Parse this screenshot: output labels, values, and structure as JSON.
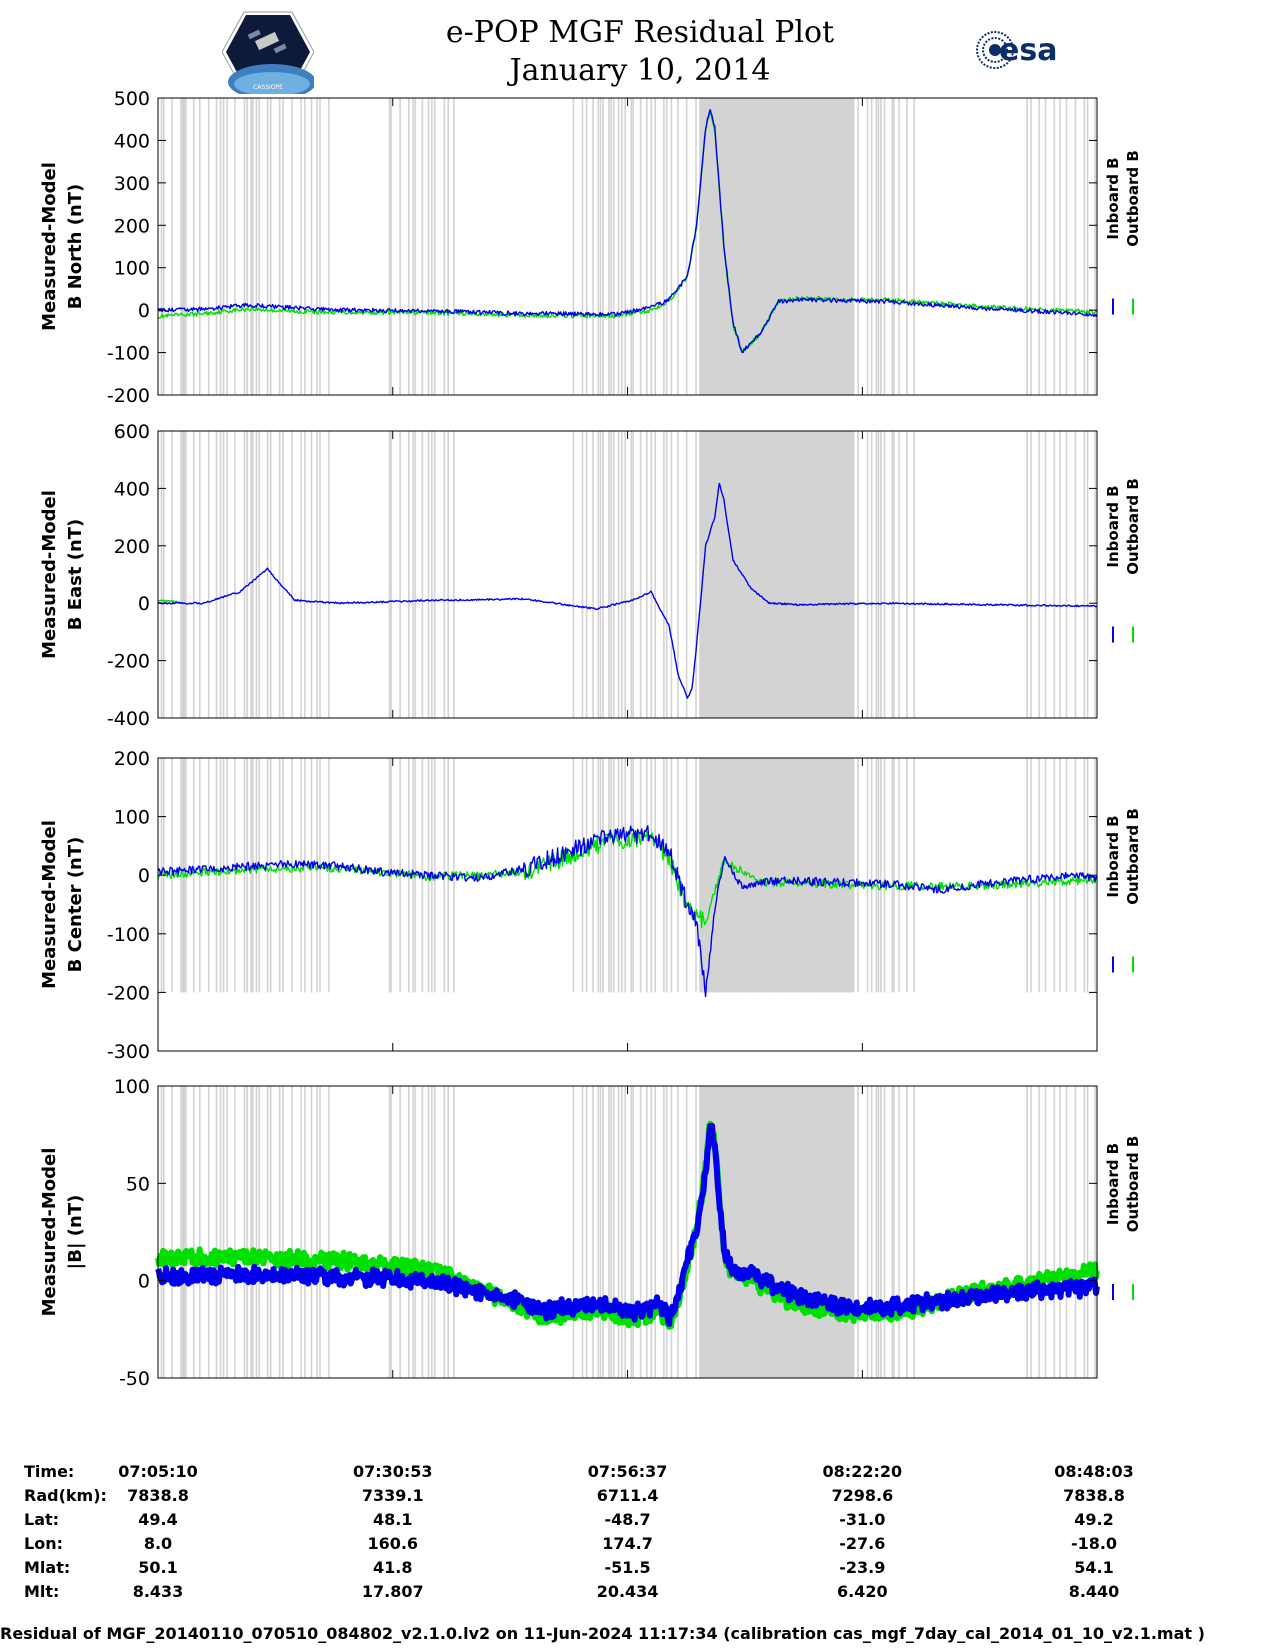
{
  "header": {
    "title_line1": "e-POP MGF Residual Plot",
    "title_line2": "January 10, 2014",
    "left_logo_text": "CASSIOPE",
    "right_logo_text": "esa"
  },
  "colors": {
    "inboard": "#0000ee",
    "outboard": "#00e000",
    "shading": "#d3d3d3"
  },
  "legend_labels": [
    "Inboard B",
    "Outboard B"
  ],
  "chart_data": [
    {
      "type": "line",
      "ylabel": [
        "Measured-Model",
        "B North (nT)"
      ],
      "ylim": [
        -200,
        500
      ],
      "yticks": [
        -200,
        -100,
        0,
        100,
        200,
        300,
        400,
        500
      ],
      "xticks_minutes": [
        0,
        25.72,
        51.45,
        77.17,
        102.88
      ],
      "series": [
        {
          "name": "Inboard B",
          "x": [
            0,
            5,
            10,
            15,
            20,
            30,
            40,
            50,
            54,
            56,
            58,
            59,
            60,
            60.5,
            61,
            62,
            63,
            64,
            66,
            68,
            70,
            80,
            90,
            102.88
          ],
          "y": [
            0,
            2,
            12,
            5,
            0,
            -2,
            -8,
            -10,
            5,
            25,
            80,
            200,
            430,
            475,
            430,
            150,
            -30,
            -100,
            -55,
            20,
            25,
            20,
            5,
            -10
          ]
        },
        {
          "name": "Outboard B",
          "x": [
            0,
            5,
            10,
            15,
            20,
            30,
            40,
            50,
            54,
            56,
            58,
            59,
            60,
            60.5,
            61,
            62,
            63,
            64,
            66,
            68,
            70,
            80,
            90,
            102.88
          ],
          "y": [
            -15,
            -8,
            3,
            -3,
            -5,
            -6,
            -12,
            -14,
            0,
            22,
            78,
            195,
            425,
            470,
            425,
            145,
            -35,
            -100,
            -55,
            20,
            28,
            24,
            9,
            -5
          ]
        }
      ]
    },
    {
      "type": "line",
      "ylabel": [
        "Measured-Model",
        "B East (nT)"
      ],
      "ylim": [
        -400,
        600
      ],
      "yticks": [
        -400,
        -200,
        0,
        200,
        400,
        600
      ],
      "xticks_minutes": [
        0,
        25.72,
        51.45,
        77.17,
        102.88
      ],
      "series": [
        {
          "name": "Inboard B",
          "x": [
            0,
            5,
            9,
            12,
            13,
            15,
            20,
            30,
            40,
            48,
            52,
            54,
            56,
            57,
            58,
            58.5,
            59,
            60,
            61,
            61.5,
            62,
            63,
            65,
            67,
            70,
            80,
            90,
            102.88
          ],
          "y": [
            0,
            0,
            40,
            120,
            80,
            10,
            0,
            10,
            15,
            -20,
            10,
            40,
            -80,
            -250,
            -330,
            -300,
            -150,
            200,
            300,
            420,
            360,
            150,
            50,
            0,
            -5,
            0,
            -5,
            -10
          ]
        },
        {
          "name": "Outboard B",
          "x": [
            0,
            2,
            2.5
          ],
          "y": [
            10,
            5,
            0
          ]
        }
      ]
    },
    {
      "type": "line",
      "ylabel": [
        "Measured-Model",
        "B Center (nT)"
      ],
      "ylim": [
        -300,
        200
      ],
      "yticks": [
        -300,
        -200,
        -100,
        0,
        100,
        200
      ],
      "xticks_minutes": [
        0,
        25.72,
        51.45,
        77.17,
        102.88
      ],
      "series": [
        {
          "name": "Inboard B",
          "x": [
            0,
            5,
            10,
            15,
            20,
            25,
            30,
            35,
            40,
            45,
            50,
            54,
            56,
            58,
            59,
            60,
            61,
            62,
            64,
            66,
            70,
            80,
            86,
            90,
            100,
            102.88
          ],
          "y": [
            5,
            10,
            15,
            20,
            15,
            5,
            0,
            -5,
            10,
            40,
            70,
            70,
            40,
            -50,
            -80,
            -200,
            -60,
            30,
            -20,
            -10,
            -10,
            -15,
            -25,
            -15,
            0,
            -5
          ]
        },
        {
          "name": "Outboard B",
          "x": [
            0,
            10,
            20,
            30,
            40,
            50,
            54,
            56,
            58,
            60,
            62,
            66,
            80,
            90,
            102.88
          ],
          "y": [
            0,
            10,
            12,
            -3,
            5,
            60,
            62,
            30,
            -55,
            -80,
            25,
            -12,
            -18,
            -18,
            -8
          ]
        }
      ]
    },
    {
      "type": "line",
      "ylabel": [
        "Measured-Model",
        "|B| (nT)"
      ],
      "ylim": [
        -50,
        100
      ],
      "yticks": [
        -50,
        0,
        50,
        100
      ],
      "xticks_minutes": [
        0,
        25.72,
        51.45,
        77.17,
        102.88
      ],
      "series": [
        {
          "name": "Inboard B",
          "x": [
            0,
            10,
            20,
            30,
            38,
            42,
            48,
            52,
            55,
            56,
            57,
            58,
            59,
            60,
            60.5,
            61,
            62,
            63,
            65,
            70,
            76,
            82,
            90,
            102.88
          ],
          "y": [
            2,
            3,
            2,
            0,
            -8,
            -15,
            -12,
            -16,
            -12,
            -18,
            -8,
            10,
            25,
            55,
            80,
            70,
            15,
            6,
            3,
            -8,
            -14,
            -13,
            -8,
            -3
          ]
        },
        {
          "name": "Outboard B",
          "x": [
            0,
            10,
            20,
            30,
            38,
            42,
            48,
            52,
            55,
            56,
            57,
            58,
            59,
            60,
            60.5,
            61,
            62,
            63,
            65,
            70,
            76,
            82,
            90,
            102.88
          ],
          "y": [
            12,
            12,
            10,
            6,
            -10,
            -19,
            -15,
            -20,
            -15,
            -22,
            -10,
            8,
            26,
            58,
            83,
            72,
            14,
            4,
            0,
            -12,
            -18,
            -16,
            -5,
            5
          ]
        }
      ]
    }
  ],
  "info_table": {
    "labels": [
      "Time:",
      "Rad(km):",
      "Lat:",
      "Lon:",
      "Mlat:",
      "Mlt:"
    ],
    "columns": [
      [
        "07:05:10",
        "7838.8",
        "49.4",
        "8.0",
        "50.1",
        "8.433"
      ],
      [
        "07:30:53",
        "7339.1",
        "48.1",
        "160.6",
        "41.8",
        "17.807"
      ],
      [
        "07:56:37",
        "6711.4",
        "-48.7",
        "174.7",
        "-51.5",
        "20.434"
      ],
      [
        "08:22:20",
        "7298.6",
        "-31.0",
        "-27.6",
        "-23.9",
        "6.420"
      ],
      [
        "08:48:03",
        "7838.8",
        "49.2",
        "-18.0",
        "54.1",
        "8.440"
      ]
    ]
  },
  "footer": "Residual of MGF_20140110_070510_084802_v2.1.0.lv2 on 11-Jun-2024 11:17:34 (calibration cas_mgf_7day_cal_2014_01_10_v2.1.mat )"
}
